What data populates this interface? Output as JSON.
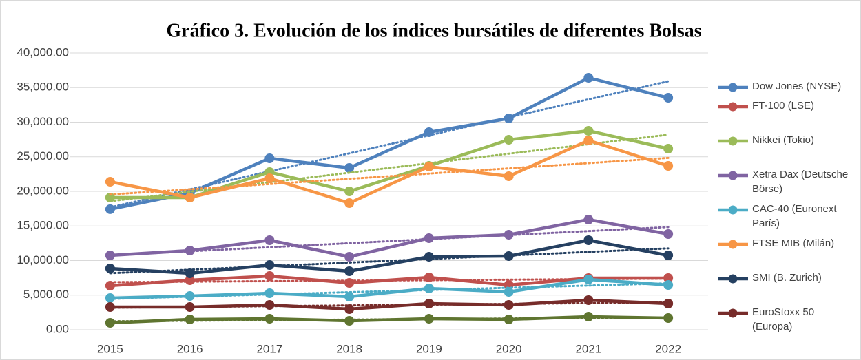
{
  "chart_data": {
    "type": "line",
    "title": "Gráfico 3. Evolución de los índices bursátiles de diferentes Bolsas",
    "categories": [
      "2015",
      "2016",
      "2017",
      "2018",
      "2019",
      "2020",
      "2021",
      "2022"
    ],
    "ylim": [
      0,
      40000
    ],
    "yticks": [
      {
        "value": 0,
        "label": "0.00"
      },
      {
        "value": 5000,
        "label": "5,000.00"
      },
      {
        "value": 10000,
        "label": "10,000.00"
      },
      {
        "value": 15000,
        "label": "15,000.00"
      },
      {
        "value": 20000,
        "label": "20,000.00"
      },
      {
        "value": 25000,
        "label": "25,000.00"
      },
      {
        "value": 30000,
        "label": "30,000.00"
      },
      {
        "value": 35000,
        "label": "35,000.00"
      },
      {
        "value": 40000,
        "label": "40,000.00"
      }
    ],
    "grid": true,
    "trendline": true,
    "legend": "right",
    "series": [
      {
        "name": "Dow Jones (NYSE)",
        "color": "#4e81bd",
        "values": [
          17425,
          19762,
          24776,
          23383,
          28557,
          30547,
          36418,
          33532
        ]
      },
      {
        "name": "FT-100 (LSE)",
        "color": "#c0504d",
        "values": [
          6368,
          7164,
          7761,
          6766,
          7562,
          6468,
          7463,
          7463
        ]
      },
      {
        "name": "Nikkei (Tokio)",
        "color": "#9bbb59",
        "values": [
          19104,
          19104,
          22786,
          20000,
          23682,
          27463,
          28756,
          26169
        ]
      },
      {
        "name": "Xetra Dax (Deutsche Börse)",
        "color": "#8064a2",
        "values": [
          10746,
          11443,
          12935,
          10547,
          13234,
          13731,
          15920,
          13831
        ]
      },
      {
        "name": "CAC-40 (Euronext París)",
        "color": "#4bacc6",
        "values": [
          4577,
          4876,
          5274,
          4776,
          5970,
          5473,
          7264,
          6468
        ]
      },
      {
        "name": "FTSE MIB (Milán)",
        "color": "#f79646",
        "values": [
          21393,
          19104,
          21891,
          18308,
          23582,
          22189,
          27363,
          23682
        ]
      },
      {
        "name": "SMI (B. Zurich)",
        "color": "#254061",
        "values": [
          8856,
          8159,
          9353,
          8458,
          10547,
          10647,
          12935,
          10746
        ]
      },
      {
        "name": "EuroStoxx 50 (Europa)",
        "color": "#772c2a",
        "values": [
          3284,
          3284,
          3582,
          2985,
          3781,
          3582,
          4279,
          3781
        ]
      },
      {
        "color": "#5f7530",
        "values": [
          995,
          1493,
          1592,
          1294,
          1592,
          1493,
          1891,
          1692
        ]
      }
    ]
  }
}
